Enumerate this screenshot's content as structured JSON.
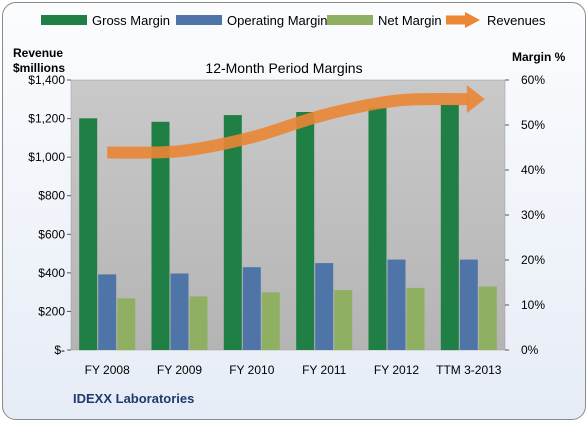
{
  "chart_data": {
    "type": "bar",
    "title": "12-Month Period Margins",
    "footer_label": "IDEXX Laboratories",
    "y_left_label_line1": "Revenue",
    "y_left_label_line2": "$millions",
    "y_right_label": "Margin %",
    "categories": [
      "FY 2008",
      "FY 2009",
      "FY 2010",
      "FY 2011",
      "FY 2012",
      "TTM 3-2013"
    ],
    "ylim_left": [
      0,
      1400
    ],
    "ylim_right": [
      0,
      60
    ],
    "y_left_ticks": [
      "$-",
      "$200",
      "$400",
      "$600",
      "$800",
      "$1,000",
      "$1,200",
      "$1,400"
    ],
    "y_right_ticks": [
      "0%",
      "10%",
      "20%",
      "30%",
      "40%",
      "50%",
      "60%"
    ],
    "grid": false,
    "legend_position": "top",
    "series": [
      {
        "name": "Gross Margin",
        "type": "bar",
        "axis": "right",
        "color": "#1f7f45",
        "values": [
          51.5,
          50.7,
          52.2,
          52.9,
          53.8,
          54.5
        ]
      },
      {
        "name": "Operating Margin",
        "type": "bar",
        "axis": "right",
        "color": "#4f74a8",
        "values": [
          16.8,
          17.0,
          18.4,
          19.3,
          20.1,
          20.1
        ]
      },
      {
        "name": "Net Margin",
        "type": "bar",
        "axis": "right",
        "color": "#8fb062",
        "values": [
          11.5,
          11.9,
          12.8,
          13.3,
          13.8,
          14.1
        ]
      },
      {
        "name": "Revenues",
        "type": "line",
        "axis": "left",
        "color": "#ea8634",
        "values": [
          1024,
          1031,
          1103,
          1219,
          1293,
          1301
        ]
      }
    ]
  }
}
